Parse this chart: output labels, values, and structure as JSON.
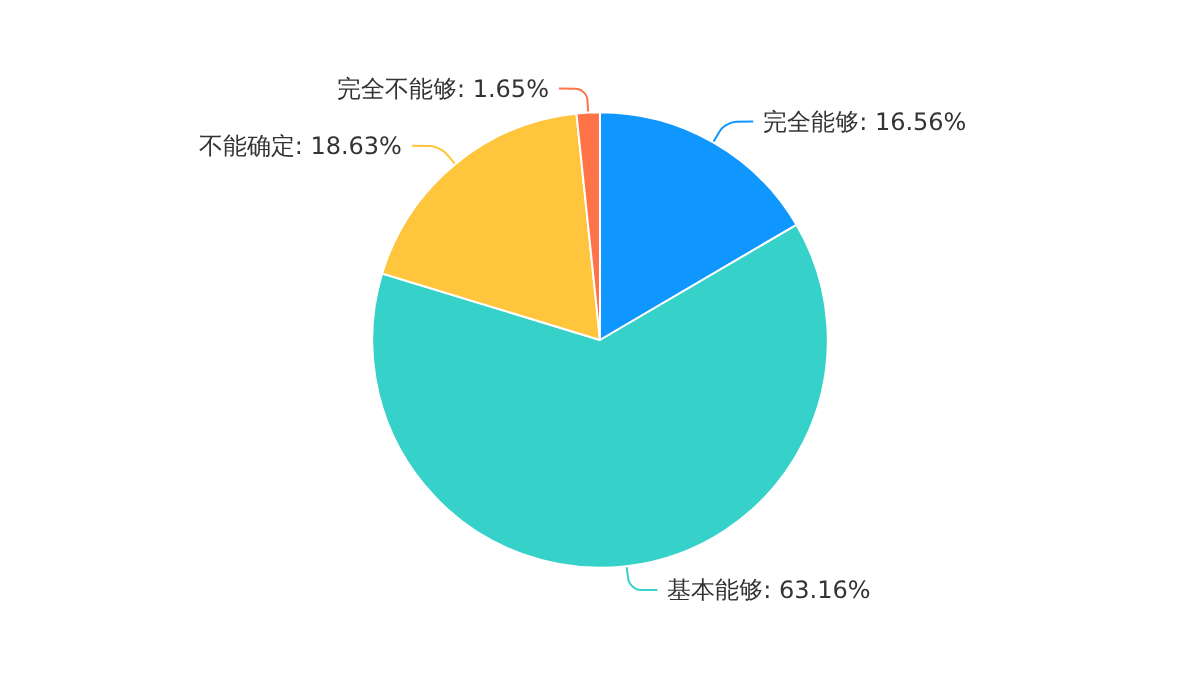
{
  "chart_data": {
    "type": "pie",
    "categories": [
      "完全能够",
      "基本能够",
      "不能确定",
      "完全不能够"
    ],
    "values": [
      16.56,
      63.16,
      18.63,
      1.65
    ],
    "value_labels": [
      "16.56%",
      "63.16%",
      "18.63%",
      "1.65%"
    ],
    "colors": [
      "#0f96ff",
      "#36d1c9",
      "#ffc53d",
      "#ff7348"
    ],
    "legend": false
  }
}
